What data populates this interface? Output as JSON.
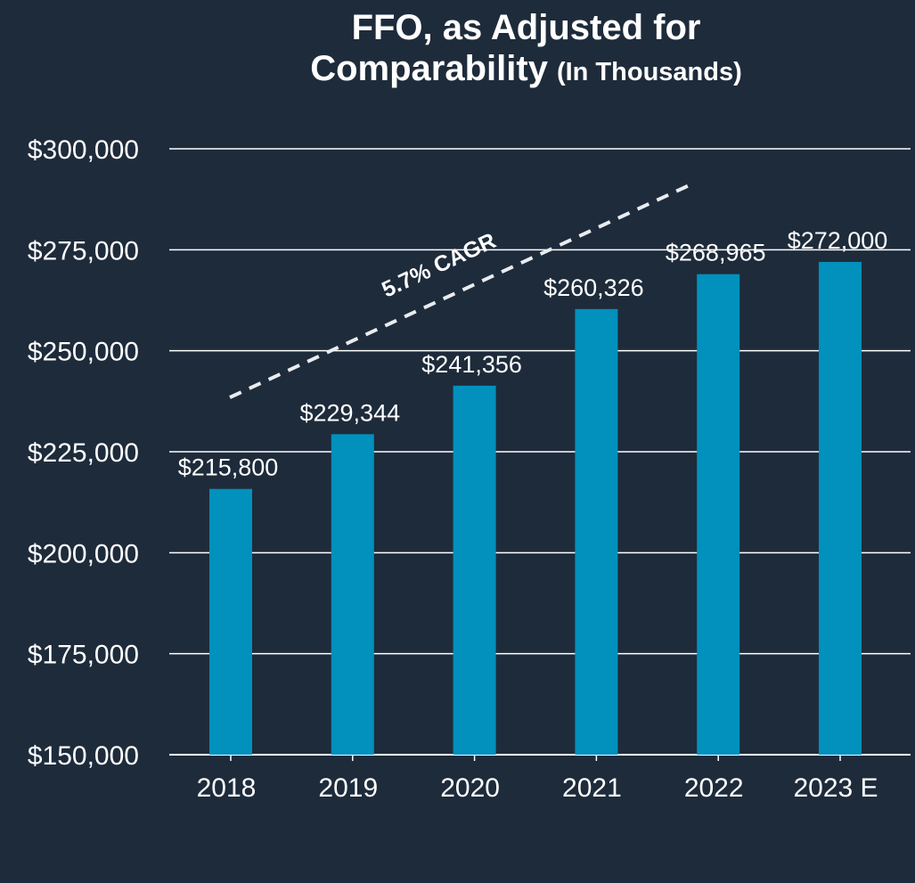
{
  "chart_data": {
    "type": "bar",
    "title_line1": "FFO, as Adjusted for",
    "title_line2": "Comparability",
    "title_unit": "(In Thousands)",
    "categories": [
      "2018",
      "2019",
      "2020",
      "2021",
      "2022",
      "2023 E"
    ],
    "values": [
      215800,
      229344,
      241356,
      260326,
      268965,
      272000
    ],
    "value_labels": [
      "$215,800",
      "$229,344",
      "$241,356",
      "$260,326",
      "$268,965",
      "$272,000"
    ],
    "ylim": [
      150000,
      300000
    ],
    "yticks": [
      150000,
      175000,
      200000,
      225000,
      250000,
      275000,
      300000
    ],
    "ytick_labels": [
      "$150,000",
      "$175,000",
      "$200,000",
      "$225,000",
      "$250,000",
      "$275,000",
      "$300,000"
    ],
    "xlabel": "",
    "ylabel": "",
    "grid": true,
    "annotation": "5.7% CAGR",
    "colors": {
      "background": "#1e2b3b",
      "bar": "#0290bd",
      "text": "#ffffff",
      "grid": "#ffffff"
    }
  }
}
